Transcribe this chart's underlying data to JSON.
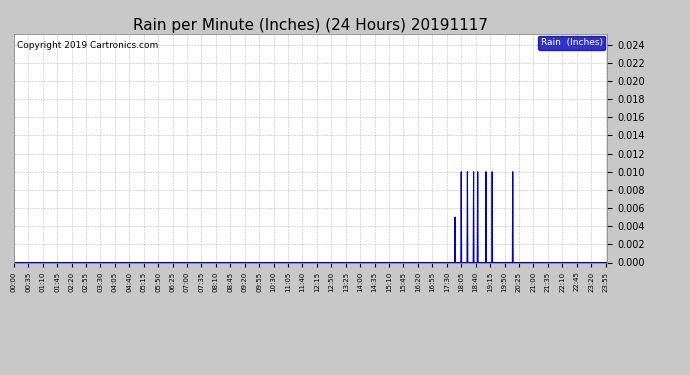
{
  "title": "Rain per Minute (Inches) (24 Hours) 20191117",
  "copyright_text": "Copyright 2019 Cartronics.com",
  "legend_label": "Rain  (Inches)",
  "legend_bg": "#0000bb",
  "legend_text_color": "#ffffff",
  "line_color": "#0000cc",
  "fig_bg_color": "#c8c8c8",
  "plot_bg": "#ffffff",
  "ylim": [
    0,
    0.0252
  ],
  "yticks": [
    0.0,
    0.002,
    0.004,
    0.006,
    0.008,
    0.01,
    0.012,
    0.014,
    0.016,
    0.018,
    0.02,
    0.022,
    0.024
  ],
  "title_fontsize": 11,
  "copyright_fontsize": 6.5,
  "spike_times_minutes": [
    1070,
    1085,
    1100,
    1115,
    1125,
    1145,
    1160,
    1210
  ],
  "spike_values": [
    0.005,
    0.01,
    0.01,
    0.01,
    0.01,
    0.01,
    0.01,
    0.01
  ],
  "xtick_interval_minutes": 35,
  "total_minutes": 1440
}
